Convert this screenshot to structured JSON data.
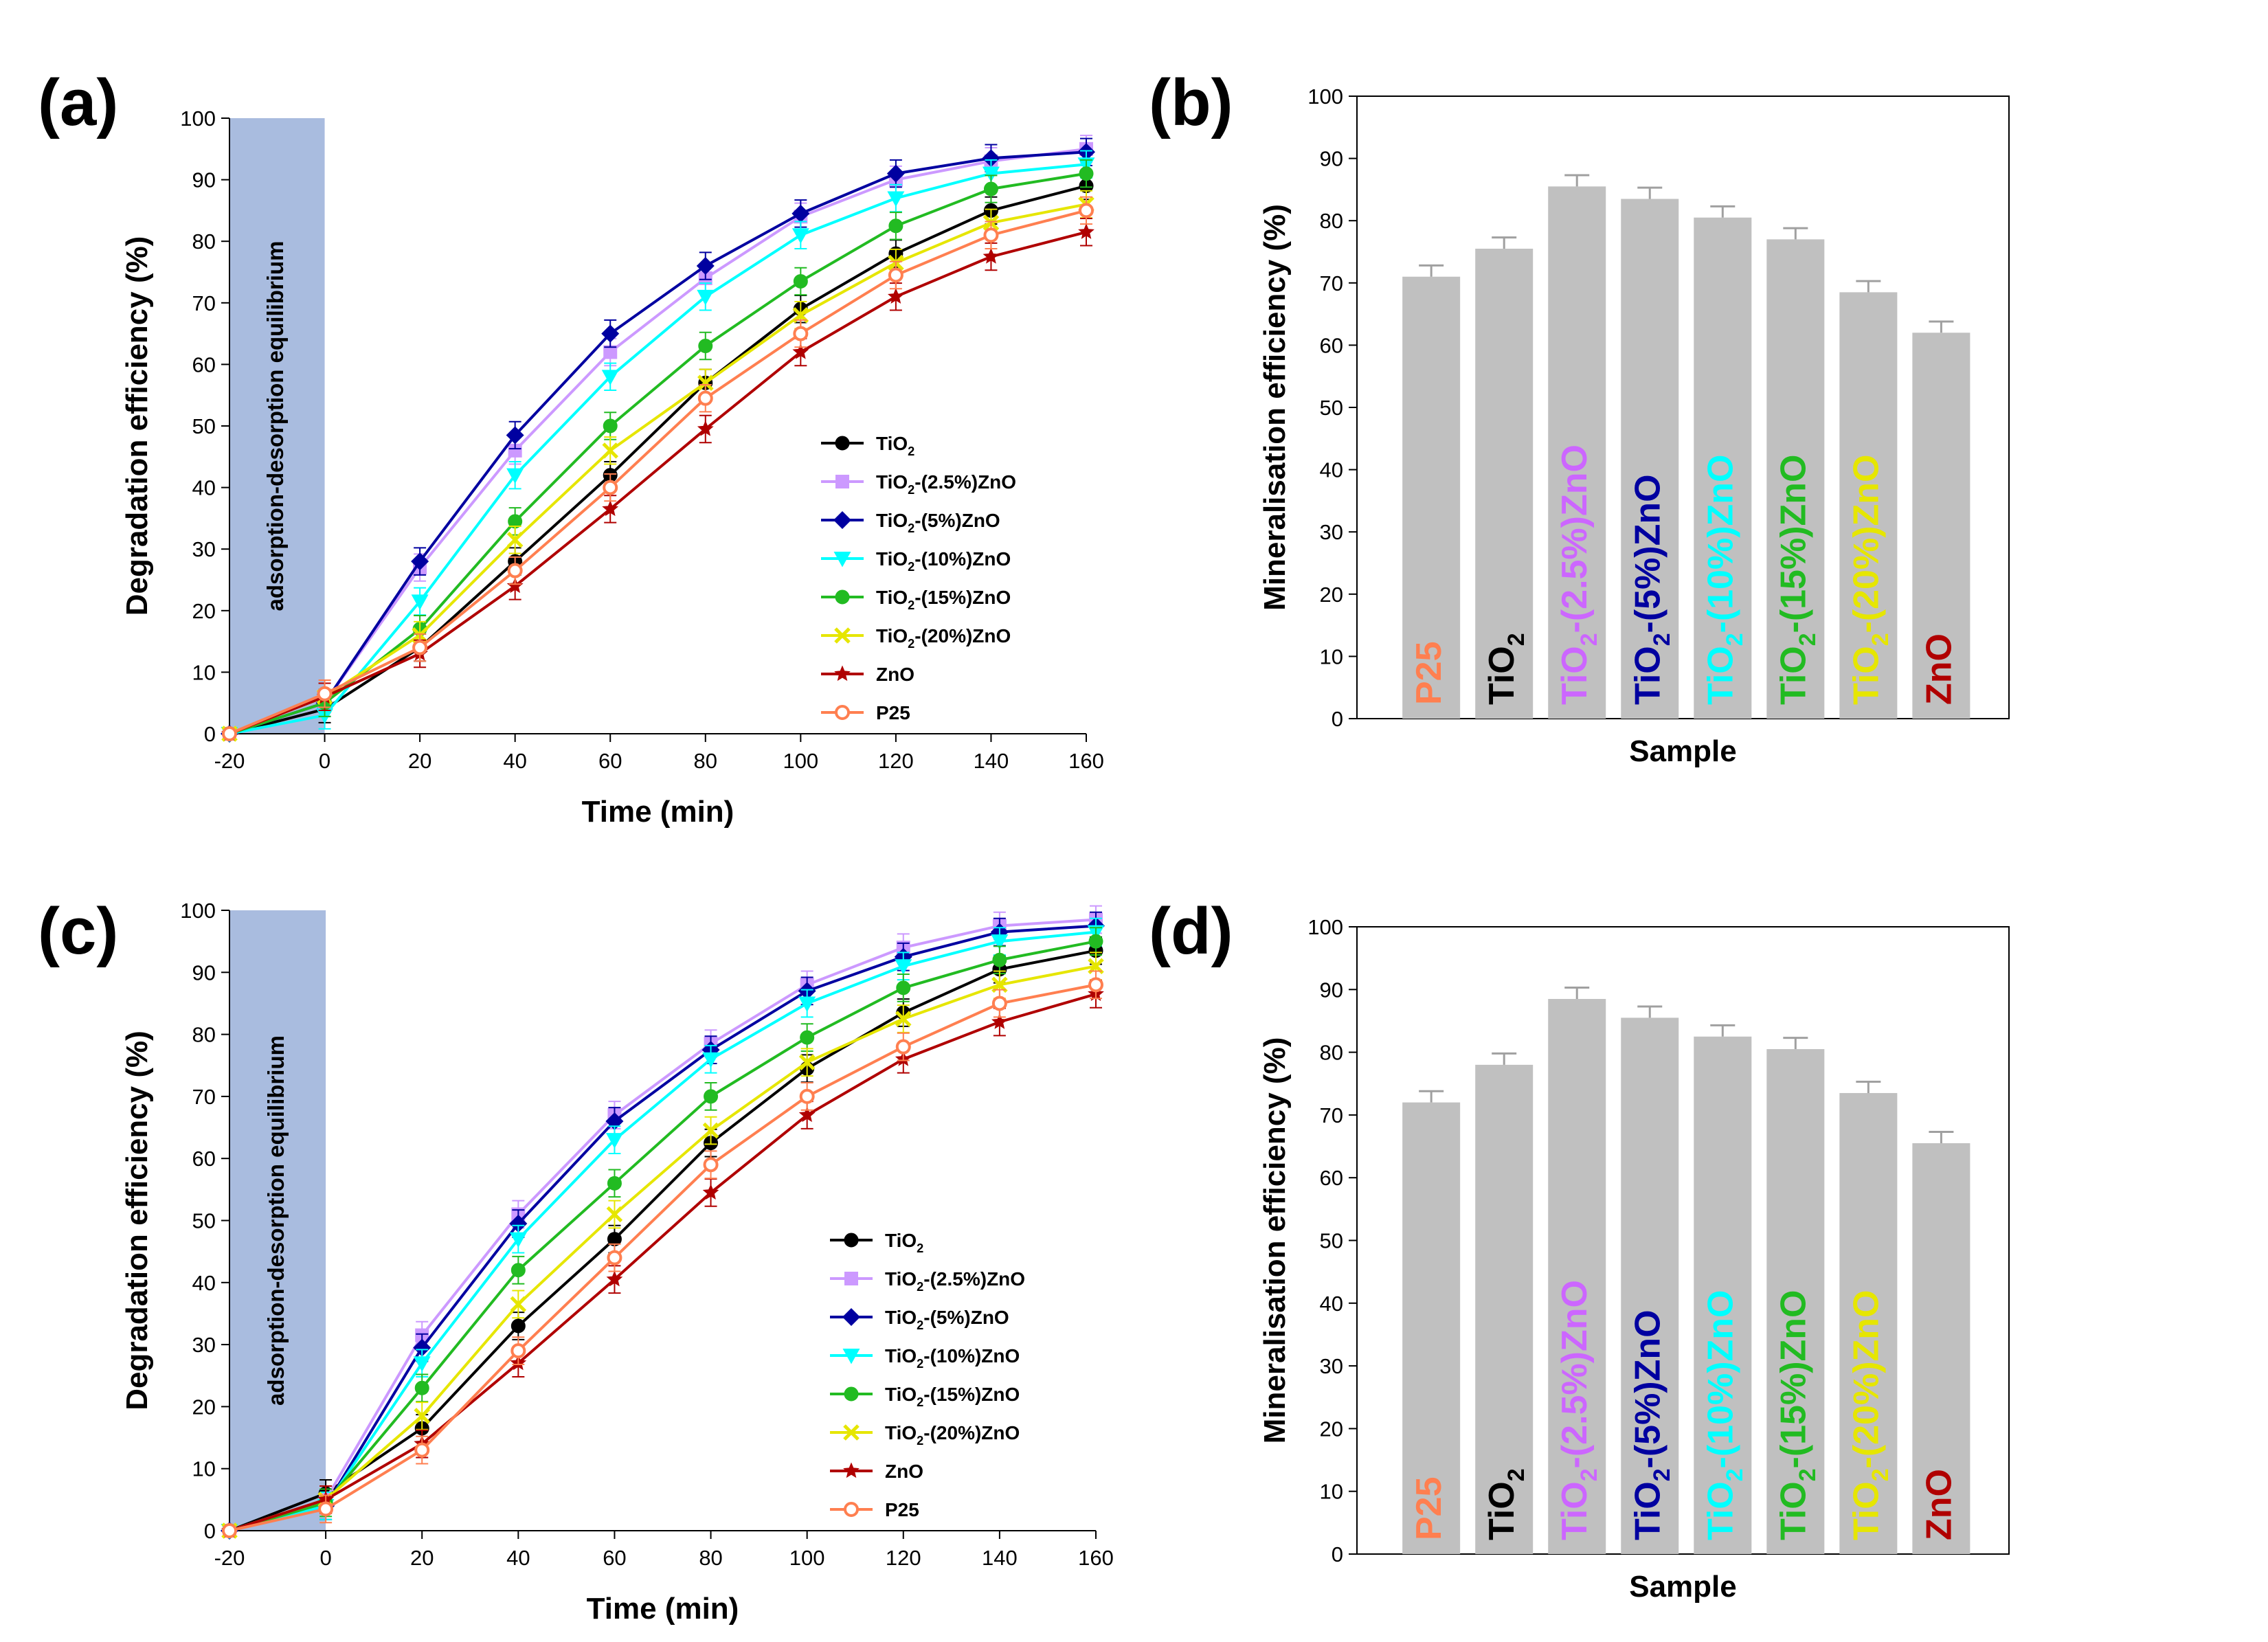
{
  "series_styles": [
    {
      "key": "TiO2",
      "color": "#000000",
      "marker": "circle"
    },
    {
      "key": "TiO2-2.5",
      "color": "#cc99ff",
      "marker": "square"
    },
    {
      "key": "TiO2-5",
      "color": "#0000a0",
      "marker": "diamond"
    },
    {
      "key": "TiO2-10",
      "color": "#00ffff",
      "marker": "triangle-down"
    },
    {
      "key": "TiO2-15",
      "color": "#22bb22",
      "marker": "circle"
    },
    {
      "key": "TiO2-20",
      "color": "#e6e600",
      "marker": "x"
    },
    {
      "key": "ZnO",
      "color": "#b00000",
      "marker": "star"
    },
    {
      "key": "P25",
      "color": "#ff7f50",
      "marker": "open-circle"
    }
  ],
  "legend_entries": [
    {
      "main": "TiO",
      "sub": "2",
      "rest": ""
    },
    {
      "main": "TiO",
      "sub": "2",
      "rest": "-(2.5%)ZnO"
    },
    {
      "main": "TiO",
      "sub": "2",
      "rest": "-(5%)ZnO"
    },
    {
      "main": "TiO",
      "sub": "2",
      "rest": "-(10%)ZnO"
    },
    {
      "main": "TiO",
      "sub": "2",
      "rest": "-(15%)ZnO"
    },
    {
      "main": "TiO",
      "sub": "2",
      "rest": "-(20%)ZnO"
    },
    {
      "main": "ZnO",
      "sub": "",
      "rest": ""
    },
    {
      "main": "P25",
      "sub": "",
      "rest": ""
    }
  ],
  "bar_colors": [
    "#ff7f50",
    "#000000",
    "#cc66ff",
    "#0000a0",
    "#00ffff",
    "#22bb22",
    "#e6e600",
    "#b00000"
  ],
  "bar_labels": [
    {
      "main": "P25",
      "sub": "",
      "rest": ""
    },
    {
      "main": "TiO",
      "sub": "2",
      "rest": ""
    },
    {
      "main": "TiO",
      "sub": "2",
      "rest": "-(2.5%)ZnO"
    },
    {
      "main": "TiO",
      "sub": "2",
      "rest": "-(5%)ZnO"
    },
    {
      "main": "TiO",
      "sub": "2",
      "rest": "-(10%)ZnO"
    },
    {
      "main": "TiO",
      "sub": "2",
      "rest": "-(15%)ZnO"
    },
    {
      "main": "TiO",
      "sub": "2",
      "rest": "-(20%)ZnO"
    },
    {
      "main": "ZnO",
      "sub": "",
      "rest": ""
    }
  ],
  "chart_data": [
    {
      "panel": "(a)",
      "type": "line",
      "xlabel": "Time (min)",
      "ylabel": "Degradation efficiency (%)",
      "xlim": [
        -20,
        160
      ],
      "ylim": [
        0,
        100
      ],
      "xticks": [
        -20,
        0,
        20,
        40,
        60,
        80,
        100,
        120,
        140,
        160
      ],
      "yticks": [
        0,
        10,
        20,
        30,
        40,
        50,
        60,
        70,
        80,
        90,
        100
      ],
      "shaded_region": {
        "from": -20,
        "to": 0,
        "label": "adsorption-desorption equilibrium"
      },
      "legend_position": "bottom-right",
      "x": [
        -20,
        0,
        20,
        40,
        60,
        80,
        100,
        120,
        140,
        160
      ],
      "series": [
        {
          "name": "TiO2",
          "values": [
            0,
            4,
            14,
            28,
            42,
            57,
            69,
            78,
            85,
            89
          ]
        },
        {
          "name": "TiO2-(2.5%)ZnO",
          "values": [
            0,
            5,
            27,
            46,
            62,
            74,
            84,
            90,
            93,
            95
          ]
        },
        {
          "name": "TiO2-(5%)ZnO",
          "values": [
            0,
            5,
            28,
            48.5,
            65,
            76,
            84.5,
            91,
            93.5,
            94.5
          ]
        },
        {
          "name": "TiO2-(10%)ZnO",
          "values": [
            0,
            3,
            21.5,
            42,
            58,
            71,
            81,
            87,
            91,
            92.5
          ]
        },
        {
          "name": "TiO2-(15%)ZnO",
          "values": [
            0,
            5,
            17,
            34.5,
            50,
            63,
            73.5,
            82.5,
            88.5,
            91
          ]
        },
        {
          "name": "TiO2-(20%)ZnO",
          "values": [
            0,
            6,
            16,
            31.5,
            46,
            57,
            68,
            76.5,
            83,
            86
          ]
        },
        {
          "name": "ZnO",
          "values": [
            0,
            6,
            13,
            24,
            36.5,
            49.5,
            62,
            71,
            77.5,
            81.5
          ]
        },
        {
          "name": "P25",
          "values": [
            0,
            6.5,
            14,
            26.5,
            40,
            54.5,
            65,
            74.5,
            81,
            85
          ]
        }
      ]
    },
    {
      "panel": "(b)",
      "type": "bar",
      "xlabel": "Sample",
      "ylabel": "Mineralisation efficiency (%)",
      "ylim": [
        0,
        100
      ],
      "yticks": [
        0,
        10,
        20,
        30,
        40,
        50,
        60,
        70,
        80,
        90,
        100
      ],
      "categories": [
        "P25",
        "TiO2",
        "TiO2-(2.5%)ZnO",
        "TiO2-(5%)ZnO",
        "TiO2-(10%)ZnO",
        "TiO2-(15%)ZnO",
        "TiO2-(20%)ZnO",
        "ZnO"
      ],
      "values": [
        71,
        75.5,
        85.5,
        83.5,
        80.5,
        77,
        68.5,
        62
      ],
      "errors": [
        1.8,
        1.8,
        1.8,
        1.8,
        1.8,
        1.8,
        1.8,
        1.8
      ]
    },
    {
      "panel": "(c)",
      "type": "line",
      "xlabel": "Time (min)",
      "ylabel": "Degradation efficiency (%)",
      "xlim": [
        -20,
        160
      ],
      "ylim": [
        0,
        100
      ],
      "xticks": [
        -20,
        0,
        20,
        40,
        60,
        80,
        100,
        120,
        140,
        160
      ],
      "yticks": [
        0,
        10,
        20,
        30,
        40,
        50,
        60,
        70,
        80,
        90,
        100
      ],
      "shaded_region": {
        "from": -20,
        "to": 0,
        "label": "adsorption-desorption equilibrium"
      },
      "legend_position": "bottom-right",
      "x": [
        -20,
        0,
        20,
        40,
        60,
        80,
        100,
        120,
        140,
        160
      ],
      "series": [
        {
          "name": "TiO2",
          "values": [
            0,
            6,
            16.5,
            33,
            47,
            62.5,
            74.5,
            83.5,
            90.5,
            93.5
          ]
        },
        {
          "name": "TiO2-(2.5%)ZnO",
          "values": [
            0,
            5,
            31.5,
            51,
            67,
            78.5,
            88,
            94,
            97.5,
            98.5
          ]
        },
        {
          "name": "TiO2-(5%)ZnO",
          "values": [
            0,
            4,
            29.5,
            49.5,
            66,
            77.5,
            87,
            92.5,
            96.5,
            97.5
          ]
        },
        {
          "name": "TiO2-(10%)ZnO",
          "values": [
            0,
            4,
            27,
            47,
            63,
            76,
            85,
            91,
            95,
            96.5
          ]
        },
        {
          "name": "TiO2-(15%)ZnO",
          "values": [
            0,
            4.5,
            23,
            42,
            56,
            70,
            79.5,
            87.5,
            92,
            95
          ]
        },
        {
          "name": "TiO2-(20%)ZnO",
          "values": [
            0,
            5,
            18.5,
            36.5,
            51,
            64.5,
            75.5,
            82.5,
            88,
            91
          ]
        },
        {
          "name": "ZnO",
          "values": [
            0,
            5,
            14,
            27,
            40.5,
            54.5,
            67,
            76,
            82,
            86.5
          ]
        },
        {
          "name": "P25",
          "values": [
            0,
            3.5,
            13,
            29,
            44,
            59,
            70,
            78,
            85,
            88
          ]
        }
      ]
    },
    {
      "panel": "(d)",
      "type": "bar",
      "xlabel": "Sample",
      "ylabel": "Mineralisation efficiency (%)",
      "ylim": [
        0,
        100
      ],
      "yticks": [
        0,
        10,
        20,
        30,
        40,
        50,
        60,
        70,
        80,
        90,
        100
      ],
      "categories": [
        "P25",
        "TiO2",
        "TiO2-(2.5%)ZnO",
        "TiO2-(5%)ZnO",
        "TiO2-(10%)ZnO",
        "TiO2-(15%)ZnO",
        "TiO2-(20%)ZnO",
        "ZnO"
      ],
      "values": [
        72,
        78,
        88.5,
        85.5,
        82.5,
        80.5,
        73.5,
        65.5
      ],
      "errors": [
        1.8,
        1.8,
        1.8,
        1.8,
        1.8,
        1.8,
        1.8,
        1.8
      ]
    }
  ]
}
